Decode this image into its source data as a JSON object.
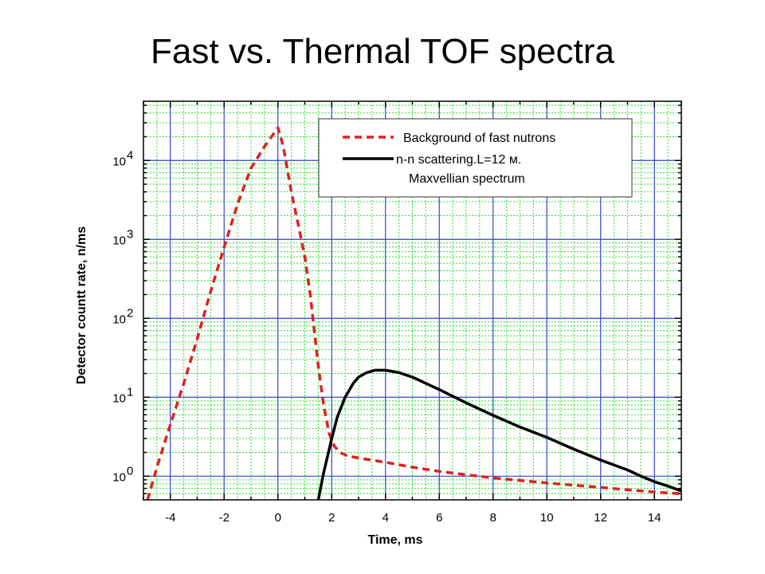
{
  "slide": {
    "title": "Fast vs. Thermal TOF spectra"
  },
  "chart_data": {
    "type": "line",
    "xlabel": "Time, ms",
    "ylabel": "Detector countt rate, n/ms",
    "xlim": [
      -5.0,
      15.0
    ],
    "ylim_log10": [
      -0.3,
      4.75
    ],
    "y_scale": "log",
    "x_ticks": [
      -4,
      -2,
      0,
      2,
      4,
      6,
      8,
      10,
      12,
      14
    ],
    "x_tick_labels": [
      "-4",
      "-2",
      "0",
      "2",
      "4",
      "6",
      "8",
      "10",
      "12",
      "14"
    ],
    "y_ticks": [
      {
        "base": "10",
        "exp": "0"
      },
      {
        "base": "10",
        "exp": "1"
      },
      {
        "base": "10",
        "exp": "2"
      },
      {
        "base": "10",
        "exp": "3"
      },
      {
        "base": "10",
        "exp": "4"
      }
    ],
    "grid": true,
    "legend_position": "top-right",
    "colors": {
      "major_grid": "#3344cc",
      "minor_grid": "#33dd33",
      "fast": "#e02020",
      "thermal": "#000000"
    },
    "series": [
      {
        "name": "Background of fast nutrons",
        "style": "dashed",
        "x": [
          -4.85,
          -4.5,
          -4.0,
          -3.5,
          -3.0,
          -2.5,
          -2.0,
          -1.5,
          -1.0,
          -0.5,
          0.0,
          0.2,
          0.5,
          0.8,
          1.0,
          1.2,
          1.5,
          1.7,
          1.9,
          2.1,
          2.3,
          2.6,
          3.0,
          4.0,
          5.0,
          6.0,
          8.0,
          10.0,
          12.0,
          14.0,
          15.0
        ],
        "y": [
          0.5,
          1.3,
          4.5,
          15,
          55,
          220,
          800,
          2800,
          8000,
          15000,
          26000,
          15000,
          4000,
          1300,
          600,
          200,
          25,
          8,
          3.5,
          2.4,
          2.0,
          1.8,
          1.7,
          1.5,
          1.3,
          1.15,
          0.95,
          0.82,
          0.72,
          0.63,
          0.6
        ]
      },
      {
        "name": "n-n scattering.L=12 м.",
        "name_line2": "Maxvellian spectrum",
        "style": "solid",
        "x": [
          1.5,
          1.7,
          2.0,
          2.2,
          2.5,
          2.8,
          3.0,
          3.3,
          3.6,
          4.0,
          4.5,
          5.0,
          6.0,
          7.0,
          8.0,
          9.0,
          10.0,
          11.0,
          12.0,
          13.0,
          13.5,
          14.0,
          14.5,
          15.0
        ],
        "y": [
          0.5,
          1.1,
          3.0,
          5.5,
          10,
          15,
          18,
          20.5,
          22,
          22,
          20.5,
          18,
          12.5,
          8.5,
          5.9,
          4.2,
          3.1,
          2.2,
          1.6,
          1.2,
          1.0,
          0.85,
          0.75,
          0.65
        ]
      }
    ]
  }
}
